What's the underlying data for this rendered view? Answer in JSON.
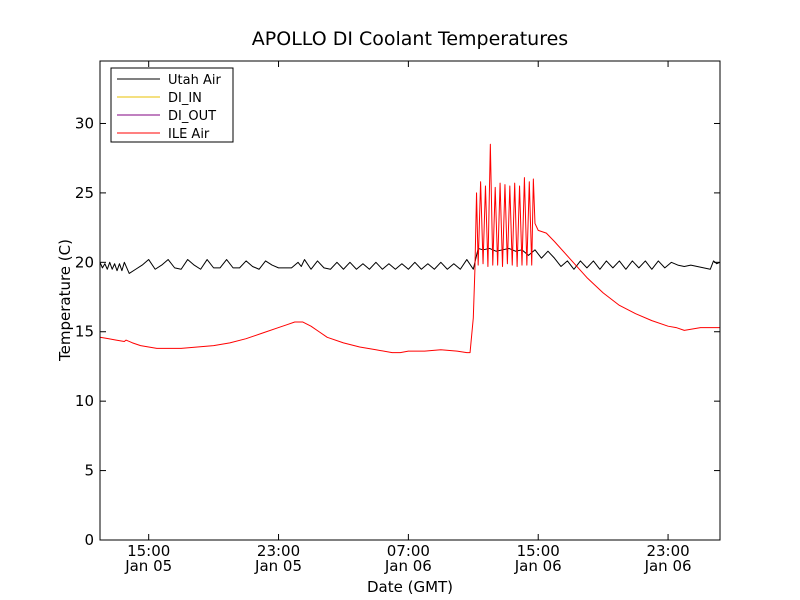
{
  "chart_data": {
    "type": "line",
    "title": "APOLLO DI Coolant Temperatures",
    "xlabel": "Date (GMT)",
    "ylabel": "Temperature (C)",
    "ylim": [
      0,
      34.5
    ],
    "xlim_hours": [
      0,
      38.2
    ],
    "yticks": [
      0,
      5,
      10,
      15,
      20,
      25,
      30
    ],
    "ytick_labels": [
      "0",
      "5",
      "10",
      "15",
      "20",
      "25",
      "30"
    ],
    "xticks": [
      {
        "hour": 3.0,
        "time": "15:00",
        "date": "Jan 05"
      },
      {
        "hour": 11.0,
        "time": "23:00",
        "date": "Jan 05"
      },
      {
        "hour": 19.0,
        "time": "07:00",
        "date": "Jan 06"
      },
      {
        "hour": 27.0,
        "time": "15:00",
        "date": "Jan 06"
      },
      {
        "hour": 35.0,
        "time": "23:00",
        "date": "Jan 06"
      }
    ],
    "legend": {
      "location": "upper-left",
      "entries": [
        {
          "label": "Utah Air",
          "color": "#000000"
        },
        {
          "label": "DI_IN",
          "color": "#e8c000"
        },
        {
          "label": "DI_OUT",
          "color": "#800080"
        },
        {
          "label": "ILE Air",
          "color": "#ff0000"
        }
      ]
    },
    "series": [
      {
        "name": "Utah Air",
        "color": "#000000",
        "x": [
          0,
          0.15,
          0.3,
          0.45,
          0.6,
          0.75,
          0.9,
          1.05,
          1.2,
          1.35,
          1.5,
          1.8,
          2.2,
          2.6,
          3.0,
          3.4,
          3.8,
          4.2,
          4.6,
          5.0,
          5.4,
          5.8,
          6.2,
          6.6,
          7.0,
          7.4,
          7.8,
          8.2,
          8.6,
          9.0,
          9.4,
          9.8,
          10.2,
          10.6,
          11.0,
          11.4,
          11.8,
          12.2,
          12.4,
          12.6,
          13.0,
          13.4,
          13.8,
          14.2,
          14.6,
          15.0,
          15.4,
          15.8,
          16.2,
          16.6,
          17.0,
          17.4,
          17.8,
          18.2,
          18.6,
          19.0,
          19.4,
          19.8,
          20.2,
          20.6,
          21.0,
          21.4,
          21.8,
          22.2,
          22.6,
          23.0,
          23.3,
          23.6,
          24.0,
          24.4,
          24.8,
          25.2,
          25.6,
          26.0,
          26.4,
          26.8,
          27.2,
          27.6,
          28.0,
          28.4,
          28.8,
          29.2,
          29.6,
          30.0,
          30.4,
          30.8,
          31.2,
          31.6,
          32.0,
          32.4,
          32.8,
          33.2,
          33.6,
          34.0,
          34.4,
          34.8,
          35.2,
          35.6,
          36.0,
          36.4,
          36.8,
          37.2,
          37.6,
          37.8,
          38.0,
          38.2
        ],
        "y": [
          20.0,
          19.6,
          19.9,
          19.5,
          20.0,
          19.5,
          19.9,
          19.4,
          19.9,
          19.4,
          20.0,
          19.2,
          19.5,
          19.8,
          20.2,
          19.5,
          19.8,
          20.2,
          19.6,
          19.5,
          20.2,
          19.8,
          19.5,
          20.2,
          19.6,
          19.6,
          20.2,
          19.6,
          19.6,
          20.1,
          19.7,
          19.5,
          20.1,
          19.8,
          19.6,
          19.6,
          19.6,
          20.0,
          19.7,
          20.2,
          19.5,
          20.1,
          19.6,
          19.5,
          20.0,
          19.5,
          20.0,
          19.5,
          19.9,
          19.5,
          20.0,
          19.5,
          19.9,
          19.5,
          19.9,
          19.5,
          20.0,
          19.5,
          19.9,
          19.5,
          20.0,
          19.5,
          19.9,
          19.5,
          20.2,
          19.5,
          21.0,
          20.9,
          21.0,
          20.8,
          20.9,
          21.0,
          20.8,
          20.9,
          20.5,
          20.9,
          20.3,
          20.8,
          20.3,
          19.7,
          20.1,
          19.5,
          20.1,
          19.6,
          20.1,
          19.5,
          20.1,
          19.6,
          20.1,
          19.5,
          20.1,
          19.6,
          20.1,
          19.5,
          20.1,
          19.6,
          20.0,
          19.8,
          19.7,
          19.8,
          19.7,
          19.6,
          19.5,
          20.1,
          19.9,
          20.0
        ]
      },
      {
        "name": "DI_IN",
        "color": "#e8c000",
        "x": [],
        "y": []
      },
      {
        "name": "DI_OUT",
        "color": "#800080",
        "x": [],
        "y": []
      },
      {
        "name": "ILE Air",
        "color": "#ff0000",
        "x": [
          0,
          0.5,
          1.0,
          1.5,
          1.6,
          2.0,
          2.5,
          3.0,
          3.5,
          4.0,
          5.0,
          6.0,
          7.0,
          8.0,
          9.0,
          10.0,
          11.0,
          11.5,
          12.0,
          12.5,
          13.0,
          13.5,
          14.0,
          15.0,
          16.0,
          17.0,
          18.0,
          18.5,
          19.0,
          20.0,
          21.0,
          22.0,
          22.6,
          22.8,
          23.0,
          23.1,
          23.2,
          23.3,
          23.45,
          23.6,
          23.75,
          23.9,
          24.05,
          24.2,
          24.35,
          24.5,
          24.65,
          24.8,
          24.95,
          25.1,
          25.25,
          25.4,
          25.55,
          25.7,
          25.85,
          26.0,
          26.15,
          26.3,
          26.45,
          26.6,
          26.7,
          26.8,
          27.0,
          27.5,
          28.0,
          29.0,
          30.0,
          31.0,
          32.0,
          33.0,
          34.0,
          35.0,
          35.5,
          36.0,
          37.0,
          38.2
        ],
        "y": [
          14.6,
          14.5,
          14.4,
          14.3,
          14.4,
          14.2,
          14.0,
          13.9,
          13.8,
          13.8,
          13.8,
          13.9,
          14.0,
          14.2,
          14.5,
          14.9,
          15.3,
          15.5,
          15.7,
          15.7,
          15.4,
          15.0,
          14.6,
          14.2,
          13.9,
          13.7,
          13.5,
          13.5,
          13.6,
          13.6,
          13.7,
          13.6,
          13.5,
          13.5,
          16.0,
          19.5,
          25.0,
          19.8,
          25.8,
          19.9,
          25.5,
          19.7,
          28.5,
          19.8,
          25.4,
          19.8,
          25.7,
          19.7,
          25.6,
          19.9,
          25.5,
          19.8,
          25.7,
          19.7,
          25.5,
          19.8,
          26.1,
          19.8,
          25.8,
          19.8,
          26.0,
          22.8,
          22.3,
          22.1,
          21.5,
          20.2,
          18.9,
          17.8,
          16.9,
          16.3,
          15.8,
          15.4,
          15.3,
          15.1,
          15.3,
          15.3
        ]
      }
    ]
  }
}
